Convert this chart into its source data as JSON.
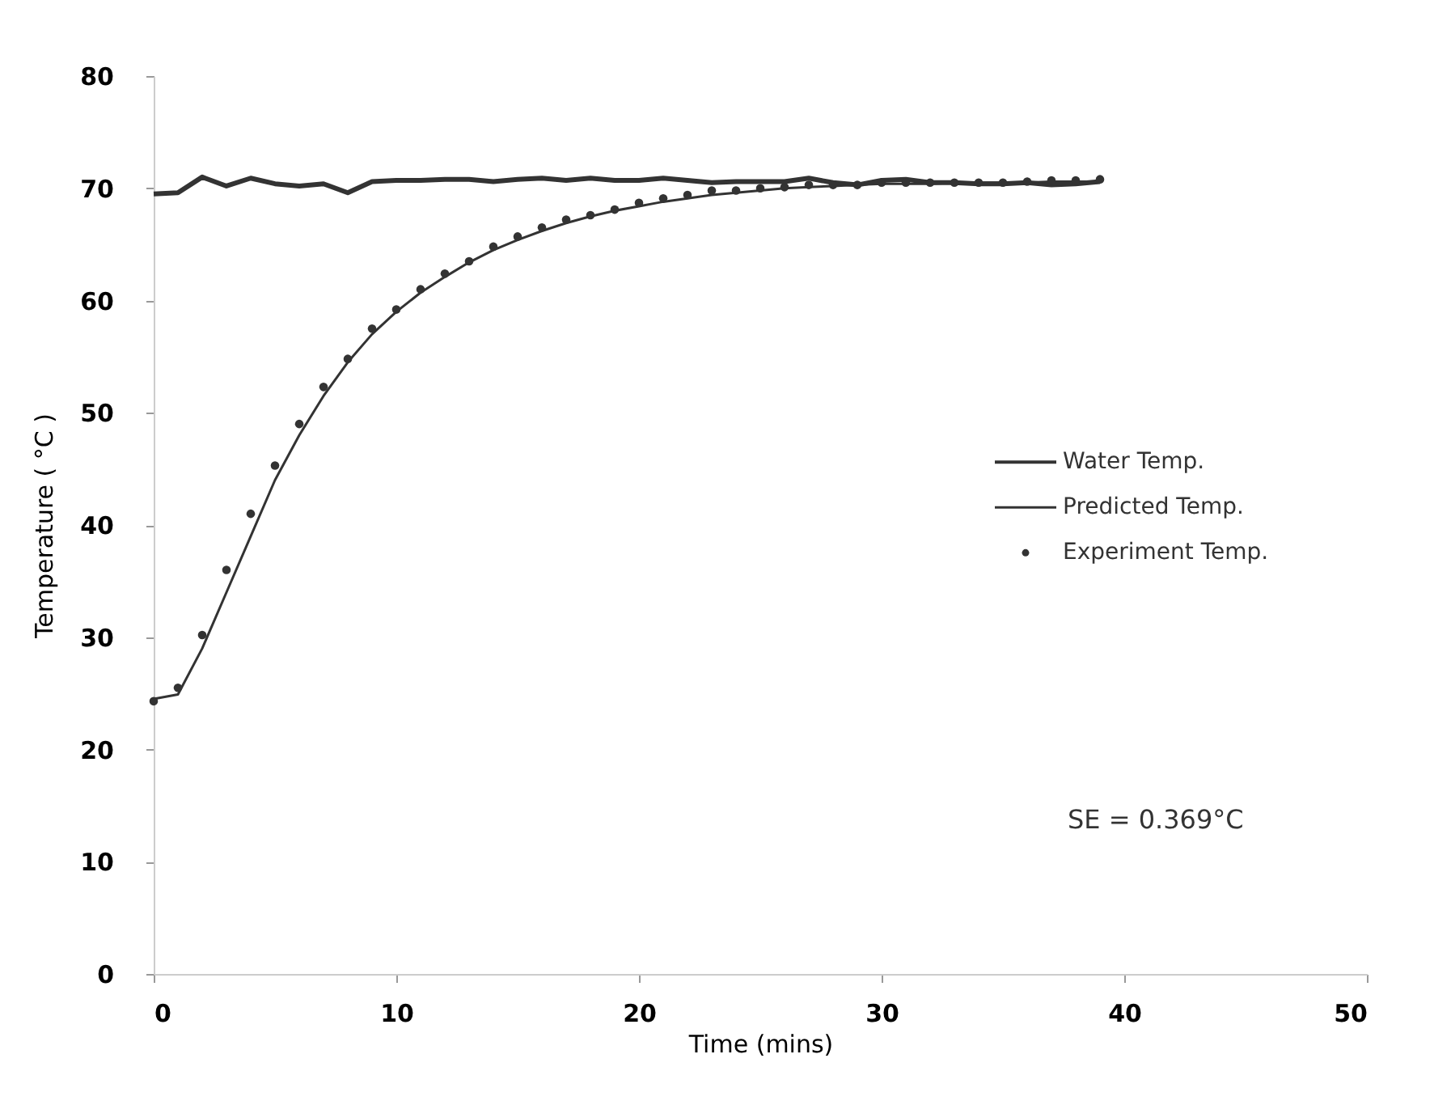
{
  "chart_data": {
    "type": "line",
    "xlabel": "Time (mins)",
    "ylabel": "Temperature ( °C )",
    "xlim": [
      0,
      50
    ],
    "xticks": [
      0,
      10,
      20,
      30,
      40,
      50
    ],
    "ylim": [
      0,
      80
    ],
    "yticks": [
      0,
      10,
      20,
      30,
      40,
      50,
      60,
      70,
      80
    ],
    "x": [
      0,
      1,
      2,
      3,
      4,
      5,
      6,
      7,
      8,
      9,
      10,
      11,
      12,
      13,
      14,
      15,
      16,
      17,
      18,
      19,
      20,
      21,
      22,
      23,
      24,
      25,
      26,
      27,
      28,
      29,
      30,
      31,
      32,
      33,
      34,
      35,
      36,
      37,
      38,
      39
    ],
    "grid": false,
    "legend": "right",
    "annotations": [
      "SE = 0.369°C"
    ],
    "series": [
      {
        "name": "Water Temp.",
        "color": "#333333",
        "values": [
          69.5,
          69.6,
          71.0,
          70.2,
          70.9,
          70.4,
          70.2,
          70.4,
          69.6,
          70.6,
          70.7,
          70.7,
          70.8,
          70.8,
          70.6,
          70.8,
          70.9,
          70.7,
          70.9,
          70.7,
          70.7,
          70.9,
          70.7,
          70.5,
          70.6,
          70.6,
          70.6,
          70.9,
          70.5,
          70.3,
          70.7,
          70.8,
          70.5,
          70.5,
          70.4,
          70.4,
          70.5,
          70.3,
          70.4,
          70.6
        ]
      },
      {
        "name": "Predicted Temp.",
        "color": "#333333",
        "values": [
          24.5,
          24.9,
          29.0,
          34.0,
          39.0,
          44.0,
          48.0,
          51.5,
          54.5,
          57.0,
          59.0,
          60.7,
          62.1,
          63.4,
          64.5,
          65.4,
          66.2,
          66.9,
          67.5,
          68.0,
          68.4,
          68.8,
          69.1,
          69.4,
          69.6,
          69.8,
          70.0,
          70.1,
          70.2,
          70.3,
          70.4,
          70.4,
          70.4,
          70.5,
          70.5,
          70.5,
          70.5,
          70.6,
          70.6,
          70.6
        ]
      },
      {
        "name": "Experiment Temp.",
        "type": "scatter",
        "color": "#333333",
        "values": [
          24.3,
          25.5,
          30.2,
          36.0,
          41.0,
          45.3,
          49.0,
          52.3,
          54.8,
          57.5,
          59.2,
          61.0,
          62.4,
          63.5,
          64.8,
          65.7,
          66.5,
          67.2,
          67.6,
          68.1,
          68.7,
          69.1,
          69.4,
          69.8,
          69.8,
          70.0,
          70.1,
          70.3,
          70.3,
          70.3,
          70.5,
          70.5,
          70.5,
          70.5,
          70.5,
          70.5,
          70.6,
          70.7,
          70.7,
          70.8
        ]
      }
    ]
  }
}
